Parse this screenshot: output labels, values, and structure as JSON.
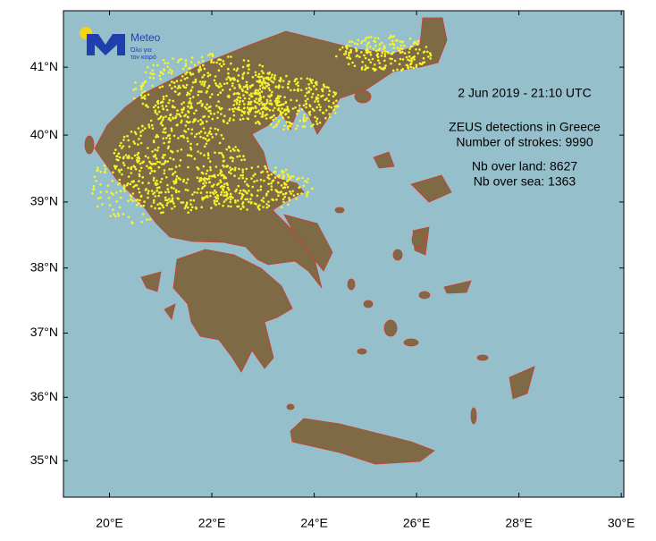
{
  "map": {
    "logo": {
      "name": "Meteo",
      "slogan1": "Όλο για",
      "slogan2": "τον καιρό"
    },
    "info": [
      "2  Jun 2019 - 21:10 UTC",
      "ZEUS detections in Greece",
      "Number of strokes: 9990",
      "Nb over land: 8627",
      "Nb over sea: 1363"
    ],
    "xlim": [
      19.1,
      30.05
    ],
    "ylim": [
      34.42,
      41.82
    ],
    "xticks": [
      {
        "value": 20,
        "label": "20°E"
      },
      {
        "value": 22,
        "label": "22°E"
      },
      {
        "value": 24,
        "label": "24°E"
      },
      {
        "value": 26,
        "label": "26°E"
      },
      {
        "value": 28,
        "label": "28°E"
      },
      {
        "value": 30,
        "label": "30°E"
      }
    ],
    "yticks": [
      {
        "value": 35,
        "label": "35°N"
      },
      {
        "value": 36,
        "label": "36°N"
      },
      {
        "value": 37,
        "label": "37°N"
      },
      {
        "value": 38,
        "label": "38°N"
      },
      {
        "value": 39,
        "label": "39°N"
      },
      {
        "value": 40,
        "label": "40°N"
      },
      {
        "value": 41,
        "label": "41°N"
      }
    ],
    "projection": "mercator"
  }
}
